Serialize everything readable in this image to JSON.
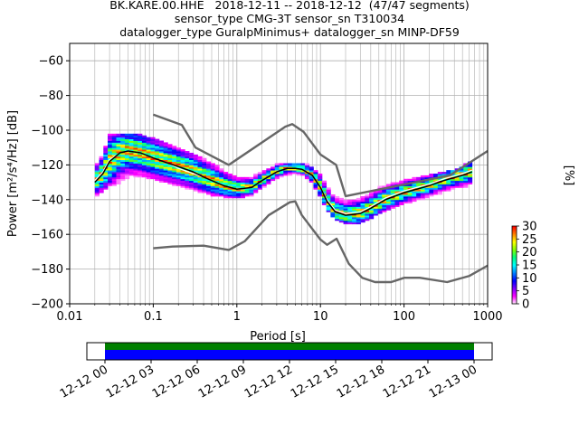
{
  "title": {
    "line1": "BK.KARE.00.HHE   2018-12-11 -- 2018-12-12  (47/47 segments)",
    "line2": "sensor_type CMG-3T sensor_sn T310034",
    "line3": "datalogger_type GuralpMinimus+ datalogger_sn MINP-DF59"
  },
  "chart_data": [
    {
      "type": "heatmap",
      "xlabel": "Period [s]",
      "ylabel": "Power [m²/s⁴/Hz] [dB]",
      "xscale": "log",
      "xlim": [
        0.01,
        1000
      ],
      "ylim": [
        -200,
        -50
      ],
      "x_ticks": [
        {
          "v": 0.01,
          "label": "0.01"
        },
        {
          "v": 0.1,
          "label": "0.1"
        },
        {
          "v": 1,
          "label": "1"
        },
        {
          "v": 10,
          "label": "10"
        },
        {
          "v": 100,
          "label": "100"
        },
        {
          "v": 1000,
          "label": "1000"
        }
      ],
      "y_ticks": [
        {
          "v": -60,
          "label": "−60"
        },
        {
          "v": -80,
          "label": "−80"
        },
        {
          "v": -100,
          "label": "−100"
        },
        {
          "v": -120,
          "label": "−120"
        },
        {
          "v": -140,
          "label": "−140"
        },
        {
          "v": -160,
          "label": "−160"
        },
        {
          "v": -180,
          "label": "−180"
        },
        {
          "v": -200,
          "label": "−200"
        }
      ],
      "grid": true,
      "noise_model_high": [
        [
          0.1,
          -91
        ],
        [
          0.22,
          -97
        ],
        [
          0.32,
          -110
        ],
        [
          0.8,
          -120
        ],
        [
          3.8,
          -98
        ],
        [
          4.6,
          -96.5
        ],
        [
          6.3,
          -101
        ],
        [
          10,
          -114
        ],
        [
          15.4,
          -120
        ],
        [
          20,
          -138
        ],
        [
          354,
          -126
        ],
        [
          1000,
          -112
        ]
      ],
      "noise_model_low": [
        [
          0.1,
          -168
        ],
        [
          0.17,
          -167
        ],
        [
          0.4,
          -166.5
        ],
        [
          0.8,
          -169
        ],
        [
          1.24,
          -164
        ],
        [
          2.4,
          -149
        ],
        [
          4.3,
          -141.5
        ],
        [
          5,
          -141
        ],
        [
          6,
          -149
        ],
        [
          10,
          -163
        ],
        [
          12,
          -166
        ],
        [
          15.6,
          -162.5
        ],
        [
          21.9,
          -177
        ],
        [
          31.6,
          -185
        ],
        [
          45,
          -187.5
        ],
        [
          70,
          -187.5
        ],
        [
          101,
          -185
        ],
        [
          154,
          -185
        ],
        [
          328,
          -187.5
        ],
        [
          600,
          -184
        ],
        [
          1000,
          -178
        ]
      ],
      "mode_curve": [
        [
          0.02,
          -130
        ],
        [
          0.025,
          -125
        ],
        [
          0.03,
          -118
        ],
        [
          0.04,
          -113
        ],
        [
          0.05,
          -112
        ],
        [
          0.07,
          -113
        ],
        [
          0.1,
          -116
        ],
        [
          0.15,
          -119
        ],
        [
          0.2,
          -121
        ],
        [
          0.3,
          -124
        ],
        [
          0.4,
          -127
        ],
        [
          0.5,
          -129
        ],
        [
          0.7,
          -132
        ],
        [
          1,
          -134
        ],
        [
          1.5,
          -133
        ],
        [
          2,
          -129
        ],
        [
          3,
          -124
        ],
        [
          4,
          -122
        ],
        [
          5,
          -122
        ],
        [
          6,
          -122.5
        ],
        [
          8,
          -126
        ],
        [
          10,
          -133
        ],
        [
          12,
          -141
        ],
        [
          15,
          -147
        ],
        [
          20,
          -149
        ],
        [
          30,
          -148
        ],
        [
          40,
          -145
        ],
        [
          60,
          -140
        ],
        [
          100,
          -136
        ],
        [
          200,
          -132
        ],
        [
          300,
          -129
        ],
        [
          500,
          -126
        ],
        [
          650,
          -124
        ]
      ],
      "mean_curve": [
        [
          0.02,
          -129
        ],
        [
          0.025,
          -124
        ],
        [
          0.03,
          -117
        ],
        [
          0.04,
          -113
        ],
        [
          0.05,
          -112
        ],
        [
          0.07,
          -113
        ],
        [
          0.1,
          -116
        ],
        [
          0.15,
          -119
        ],
        [
          0.2,
          -122
        ],
        [
          0.3,
          -125
        ],
        [
          0.4,
          -127
        ],
        [
          0.5,
          -129
        ],
        [
          0.7,
          -132
        ],
        [
          1,
          -134
        ],
        [
          1.5,
          -133
        ],
        [
          2,
          -129
        ],
        [
          3,
          -124
        ],
        [
          4,
          -122
        ],
        [
          5,
          -122
        ],
        [
          6,
          -122.5
        ],
        [
          8,
          -126
        ],
        [
          10,
          -133
        ],
        [
          12,
          -140
        ],
        [
          15,
          -146
        ],
        [
          20,
          -148
        ],
        [
          30,
          -147
        ],
        [
          40,
          -144
        ],
        [
          60,
          -139
        ],
        [
          100,
          -135
        ],
        [
          200,
          -131
        ],
        [
          300,
          -128
        ],
        [
          500,
          -125
        ],
        [
          650,
          -123
        ]
      ],
      "psd_spread": [
        {
          "x": 0.02,
          "hi": -123,
          "lo": -138
        },
        {
          "x": 0.025,
          "hi": -115,
          "lo": -135
        },
        {
          "x": 0.03,
          "hi": -103,
          "lo": -132
        },
        {
          "x": 0.05,
          "hi": -103,
          "lo": -128
        },
        {
          "x": 0.07,
          "hi": -104,
          "lo": -127
        },
        {
          "x": 0.1,
          "hi": -106,
          "lo": -128
        },
        {
          "x": 0.15,
          "hi": -109,
          "lo": -130
        },
        {
          "x": 0.2,
          "hi": -112,
          "lo": -132
        },
        {
          "x": 0.3,
          "hi": -115,
          "lo": -134
        },
        {
          "x": 0.5,
          "hi": -120,
          "lo": -137
        },
        {
          "x": 0.7,
          "hi": -124,
          "lo": -138
        },
        {
          "x": 1,
          "hi": -128,
          "lo": -139
        },
        {
          "x": 1.5,
          "hi": -128,
          "lo": -137
        },
        {
          "x": 2,
          "hi": -125,
          "lo": -133
        },
        {
          "x": 3,
          "hi": -121,
          "lo": -128
        },
        {
          "x": 5,
          "hi": -120,
          "lo": -126
        },
        {
          "x": 7,
          "hi": -121,
          "lo": -128
        },
        {
          "x": 10,
          "hi": -126,
          "lo": -138
        },
        {
          "x": 12,
          "hi": -133,
          "lo": -146
        },
        {
          "x": 15,
          "hi": -138,
          "lo": -151
        },
        {
          "x": 20,
          "hi": -141,
          "lo": -154
        },
        {
          "x": 30,
          "hi": -139,
          "lo": -153
        },
        {
          "x": 50,
          "hi": -134,
          "lo": -148
        },
        {
          "x": 100,
          "hi": -130,
          "lo": -142
        },
        {
          "x": 200,
          "hi": -127,
          "lo": -138
        },
        {
          "x": 400,
          "hi": -124,
          "lo": -135
        },
        {
          "x": 650,
          "hi": -119,
          "lo": -132
        }
      ]
    },
    {
      "type": "colorbar",
      "label": "[%]",
      "ticks": [
        0,
        5,
        10,
        15,
        20,
        25,
        30
      ],
      "colormap": [
        "#ffffff",
        "#ff00ff",
        "#8000ff",
        "#0000ff",
        "#0080ff",
        "#00ffff",
        "#00ff80",
        "#80ff00",
        "#ffff00",
        "#ff8000",
        "#ff0000"
      ]
    },
    {
      "type": "timeline",
      "tick_labels": [
        "12-12 00",
        "12-12 03",
        "12-12 06",
        "12-12 09",
        "12-12 12",
        "12-12 15",
        "12-12 18",
        "12-12 21",
        "12-13 00"
      ],
      "coverage_colors": {
        "top": "#008000",
        "bottom": "#0000ff"
      },
      "coverage_fraction": 1.0
    }
  ]
}
